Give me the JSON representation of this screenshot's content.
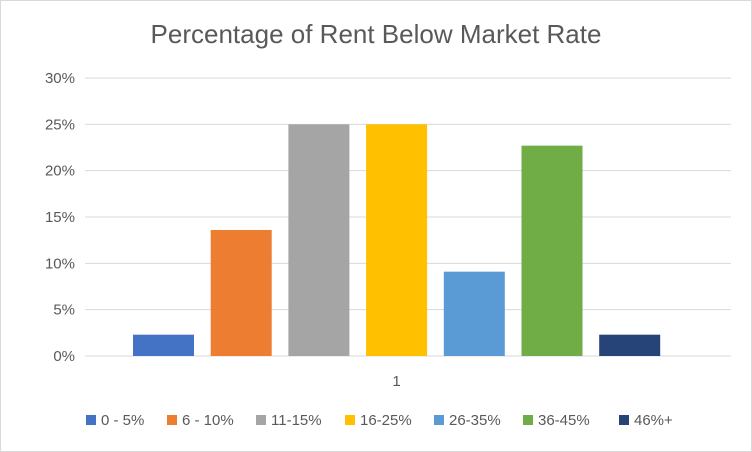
{
  "chart_data": {
    "type": "bar",
    "title": "Percentage of Rent Below Market Rate",
    "categories": [
      "1"
    ],
    "xlabel": "",
    "ylabel": "",
    "ylim": [
      0,
      30
    ],
    "yticks": [
      "0%",
      "5%",
      "10%",
      "15%",
      "20%",
      "25%",
      "30%"
    ],
    "ytick_values": [
      0,
      5,
      10,
      15,
      20,
      25,
      30
    ],
    "grid": true,
    "legend_position": "bottom",
    "series": [
      {
        "name": "0 - 5%",
        "values": [
          2.3
        ],
        "color": "#4472c4"
      },
      {
        "name": "6 - 10%",
        "values": [
          13.6
        ],
        "color": "#ed7d31"
      },
      {
        "name": "11-15%",
        "values": [
          25.0
        ],
        "color": "#a5a5a5"
      },
      {
        "name": "16-25%",
        "values": [
          25.0
        ],
        "color": "#ffc000"
      },
      {
        "name": "26-35%",
        "values": [
          9.1
        ],
        "color": "#5b9bd5"
      },
      {
        "name": "36-45%",
        "values": [
          22.7
        ],
        "color": "#70ad47"
      },
      {
        "name": "46%+",
        "values": [
          2.3
        ],
        "color": "#264478"
      }
    ]
  }
}
